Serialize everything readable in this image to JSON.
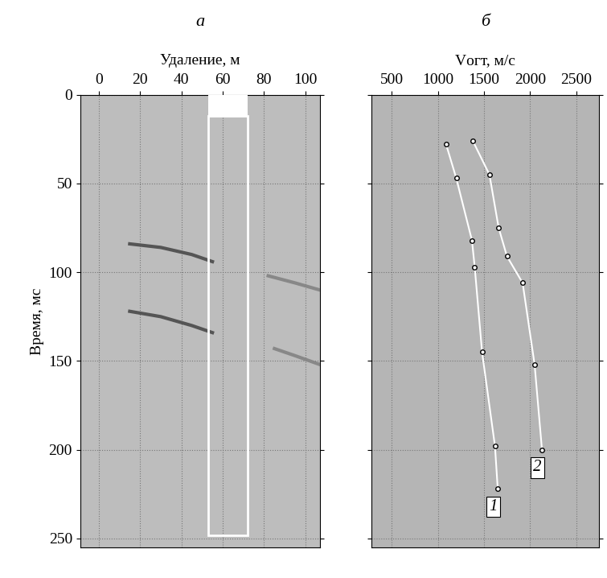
{
  "chart_data": [
    {
      "type": "line",
      "title": "а",
      "x_label": "Удаление, м",
      "y_label": "Время, мс",
      "xlim": [
        -9,
        107
      ],
      "xticks": [
        0,
        20,
        40,
        60,
        80,
        100
      ],
      "ylim": [
        255,
        0
      ],
      "yticks": [
        0,
        50,
        100,
        150,
        200,
        250
      ],
      "grid": true,
      "tick_labels": true,
      "window": {
        "x": [
          53,
          72
        ],
        "y": [
          12,
          248
        ]
      },
      "series": [
        {
          "color": "#555555",
          "values": {
            "x": [
              15,
              30,
              45,
              55
            ],
            "y": [
              84,
              86,
              90,
              94
            ]
          }
        },
        {
          "color": "#888888",
          "values": {
            "x": [
              82,
              95,
              107
            ],
            "y": [
              102,
              106,
              110
            ]
          }
        },
        {
          "color": "#555555",
          "values": {
            "x": [
              15,
              30,
              45,
              55
            ],
            "y": [
              122,
              125,
              130,
              134
            ]
          }
        },
        {
          "color": "#888888",
          "values": {
            "x": [
              85,
              95,
              107
            ],
            "y": [
              143,
              147,
              152
            ]
          }
        }
      ]
    },
    {
      "type": "line",
      "title": "б",
      "x_label": "Vогт, м/с",
      "xlim": [
        280,
        2750
      ],
      "xticks": [
        500,
        1000,
        1500,
        2000,
        2500
      ],
      "ylim": [
        255,
        0
      ],
      "yticks": [
        0,
        50,
        100,
        150,
        200,
        250
      ],
      "grid": true,
      "tick_labels": "x",
      "series": [
        {
          "name": "1",
          "color": "#ffffff",
          "marker": "o",
          "values": {
            "x": [
              1090,
              1200,
              1370,
              1400,
              1480,
              1620,
              1650
            ],
            "y": [
              28,
              47,
              82,
              97,
              145,
              198,
              222
            ]
          }
        },
        {
          "name": "2",
          "color": "#ffffff",
          "marker": "o",
          "values": {
            "x": [
              1380,
              1560,
              1660,
              1750,
              1920,
              2050,
              2130
            ],
            "y": [
              26,
              45,
              75,
              91,
              106,
              152,
              200
            ]
          }
        }
      ]
    }
  ]
}
